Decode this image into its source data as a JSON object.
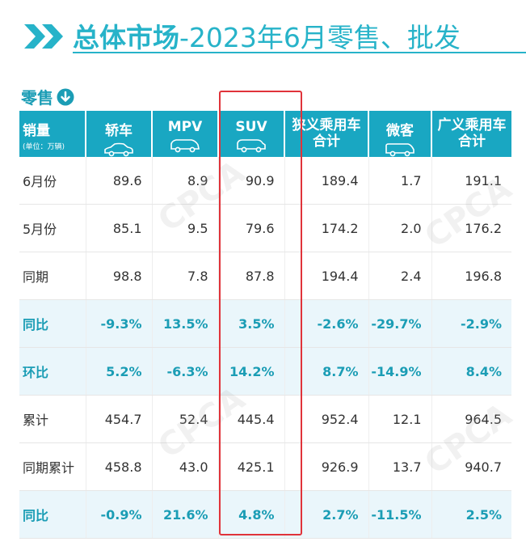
{
  "header": {
    "title_bold": "总体市场",
    "title_rest": "-2023年6月零售、批发"
  },
  "section": {
    "label": "零售"
  },
  "table": {
    "corner": {
      "main": "销量",
      "sub": "(单位：万辆)"
    },
    "columns": [
      {
        "label": "轿车",
        "icon": "sedan-icon"
      },
      {
        "label": "MPV",
        "icon": "mpv-icon"
      },
      {
        "label": "SUV",
        "icon": "suv-icon"
      },
      {
        "label": "狭义乘用车合计",
        "line1": "狭义乘用车",
        "line2": "合计"
      },
      {
        "label": "微客",
        "icon": "van-icon"
      },
      {
        "label": "广义乘用车合计",
        "line1": "广义乘用车",
        "line2": "合计"
      }
    ],
    "rows": [
      {
        "label": "6月份",
        "values": [
          "89.6",
          "8.9",
          "90.9",
          "189.4",
          "1.7",
          "191.1"
        ],
        "highlight": false
      },
      {
        "label": "5月份",
        "values": [
          "85.1",
          "9.5",
          "79.6",
          "174.2",
          "2.0",
          "176.2"
        ],
        "highlight": false
      },
      {
        "label": "同期",
        "values": [
          "98.8",
          "7.8",
          "87.8",
          "194.4",
          "2.4",
          "196.8"
        ],
        "highlight": false
      },
      {
        "label": "同比",
        "values": [
          "-9.3%",
          "13.5%",
          "3.5%",
          "-2.6%",
          "-29.7%",
          "-2.9%"
        ],
        "highlight": true
      },
      {
        "label": "环比",
        "values": [
          "5.2%",
          "-6.3%",
          "14.2%",
          "8.7%",
          "-14.9%",
          "8.4%"
        ],
        "highlight": true
      },
      {
        "label": "累计",
        "values": [
          "454.7",
          "52.4",
          "445.4",
          "952.4",
          "12.1",
          "964.5"
        ],
        "highlight": false
      },
      {
        "label": "同期累计",
        "values": [
          "458.8",
          "43.0",
          "425.1",
          "926.9",
          "13.7",
          "940.7"
        ],
        "highlight": false
      },
      {
        "label": "同比",
        "values": [
          "-0.9%",
          "21.6%",
          "4.8%",
          "2.7%",
          "-11.5%",
          "2.5%"
        ],
        "highlight": true
      }
    ]
  },
  "colors": {
    "accent": "#19a7c2",
    "highlight_text": "#1b9db5",
    "highlight_bg": "#eaf6fb",
    "annotation": "#e0333a"
  },
  "icons": [
    "double-chevron-icon",
    "down-arrow-circle-icon",
    "sedan-icon",
    "mpv-icon",
    "suv-icon",
    "van-icon"
  ]
}
